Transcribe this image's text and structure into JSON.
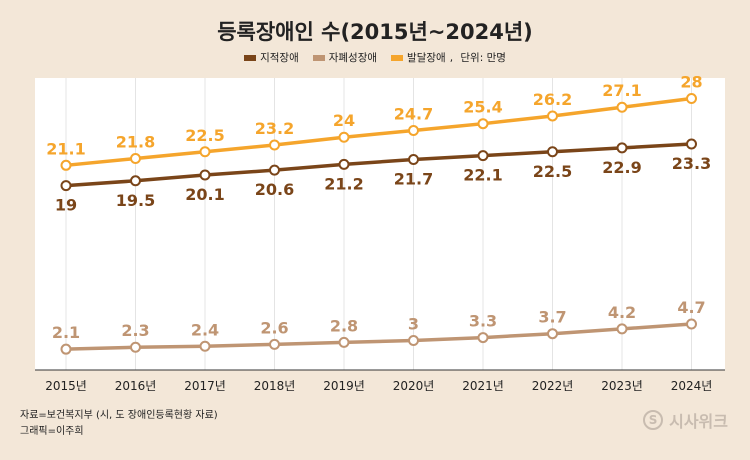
{
  "title": "등록장애인 수(2015년~2024년)",
  "legend": {
    "items": [
      {
        "label": "지적장애",
        "color": "#7a4519"
      },
      {
        "label": "자폐성장애",
        "color": "#bf9573"
      },
      {
        "label": "발달장애",
        "color": "#f5a52c"
      }
    ],
    "unit": "단위: 만명"
  },
  "source": "자료=보건복지부 (시, 도 장애인등록현황 자료)",
  "credit": "그래픽=이주희",
  "logo": {
    "text": "시사위크",
    "mark": "S"
  },
  "chart_data": {
    "type": "line",
    "title": "등록장애인 수(2015년~2024년)",
    "categories": [
      "2015년",
      "2016년",
      "2017년",
      "2018년",
      "2019년",
      "2020년",
      "2021년",
      "2022년",
      "2023년",
      "2024년"
    ],
    "series": [
      {
        "name": "발달장애",
        "color": "#f5a52c",
        "values": [
          21.1,
          21.8,
          22.5,
          23.2,
          24,
          24.7,
          25.4,
          26.2,
          27.1,
          28
        ],
        "labels": [
          "21.1",
          "21.8",
          "22.5",
          "23.2",
          "24",
          "24.7",
          "25.4",
          "26.2",
          "27.1",
          "28"
        ],
        "label_position": "above"
      },
      {
        "name": "지적장애",
        "color": "#7a4519",
        "values": [
          19,
          19.5,
          20.1,
          20.6,
          21.2,
          21.7,
          22.1,
          22.5,
          22.9,
          23.3
        ],
        "labels": [
          "19",
          "19.5",
          "20.1",
          "20.6",
          "21.2",
          "21.7",
          "22.1",
          "22.5",
          "22.9",
          "23.3"
        ],
        "label_position": "below"
      },
      {
        "name": "자폐성장애",
        "color": "#bf9573",
        "values": [
          2.1,
          2.3,
          2.4,
          2.6,
          2.8,
          3,
          3.3,
          3.7,
          4.2,
          4.7
        ],
        "labels": [
          "2.1",
          "2.3",
          "2.4",
          "2.6",
          "2.8",
          "3",
          "3.3",
          "3.7",
          "4.2",
          "4.7"
        ],
        "label_position": "above"
      }
    ],
    "legend_position": "top",
    "grid": "vertical",
    "ylim": [
      0,
      31
    ]
  }
}
